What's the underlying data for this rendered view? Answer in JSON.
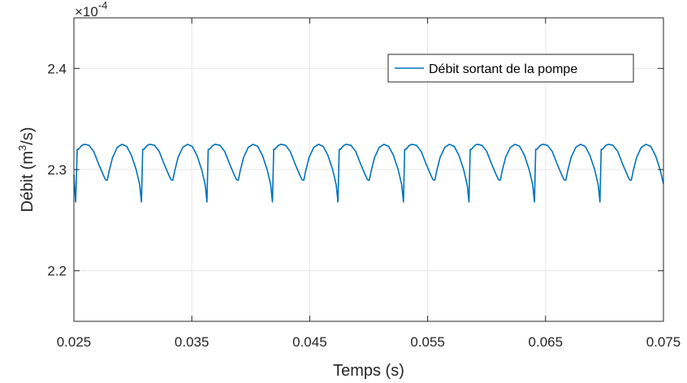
{
  "chart_data": {
    "type": "line",
    "xlabel": "Temps (s)",
    "ylabel_main": "Débit (m",
    "ylabel_sup": "3",
    "ylabel_tail": "/s)",
    "y_multiplier_base": "×10",
    "y_multiplier_exp": "-4",
    "xlim": [
      0.025,
      0.075
    ],
    "ylim": [
      2.15,
      2.45
    ],
    "xticks": [
      0.025,
      0.035,
      0.045,
      0.055,
      0.065,
      0.075
    ],
    "xtick_labels": [
      "0.025",
      "0.035",
      "0.045",
      "0.055",
      "0.065",
      "0.075"
    ],
    "yticks": [
      2.2,
      2.3,
      2.4
    ],
    "ytick_labels": [
      "2.2",
      "2.3",
      "2.4"
    ],
    "grid": true,
    "legend_position": "top-right",
    "line_color": "#0072BD",
    "series": [
      {
        "name": "Débit sortant de la pompe",
        "pattern_period": 0.005555,
        "pattern_start": 0.02528,
        "pattern_x_offsets": [
          0,
          0.0001,
          0.0004,
          0.0006,
          0.001,
          0.0014,
          0.0018,
          0.0022,
          0.0024,
          0.00255,
          0.0026,
          0.0027,
          0.003,
          0.0034,
          0.0038,
          0.0042,
          0.0046,
          0.005,
          0.0053,
          0.00545,
          0.005555
        ],
        "pattern_y_values": [
          2.32,
          2.32,
          2.324,
          2.325,
          2.324,
          2.318,
          2.306,
          2.295,
          2.29,
          2.2895,
          2.292,
          2.298,
          2.312,
          2.322,
          2.325,
          2.323,
          2.314,
          2.3,
          2.285,
          2.268,
          2.32
        ],
        "start_points": [
          [
            0.025,
            2.295
          ],
          [
            0.02505,
            2.285
          ],
          [
            0.02515,
            2.268
          ]
        ],
        "end_x": 0.075
      }
    ]
  }
}
